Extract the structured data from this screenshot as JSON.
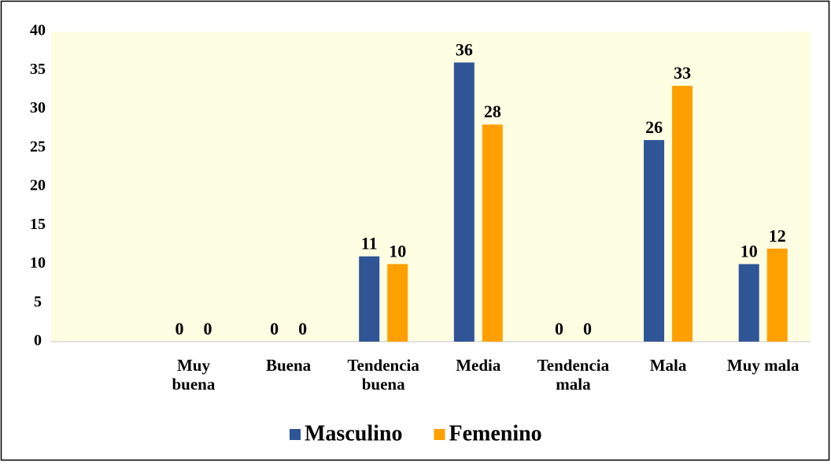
{
  "chart_data": {
    "type": "bar",
    "categories": [
      null,
      "Muy\nbuena",
      "Buena",
      "Tendencia\nbuena",
      "Media",
      "Tendencia\nmala",
      "Mala",
      "Muy mala"
    ],
    "series": [
      {
        "name": "Masculino",
        "color": "#2f5597",
        "values": [
          null,
          0,
          0,
          11,
          36,
          0,
          26,
          10
        ]
      },
      {
        "name": "Femenino",
        "color": "#ffa000",
        "values": [
          null,
          0,
          0,
          10,
          28,
          0,
          33,
          12
        ]
      }
    ],
    "ylim": [
      0,
      40
    ],
    "yticks": [
      0,
      5,
      10,
      15,
      20,
      25,
      30,
      35,
      40
    ],
    "legend": "bottom",
    "plot_background": "#fefee2"
  }
}
